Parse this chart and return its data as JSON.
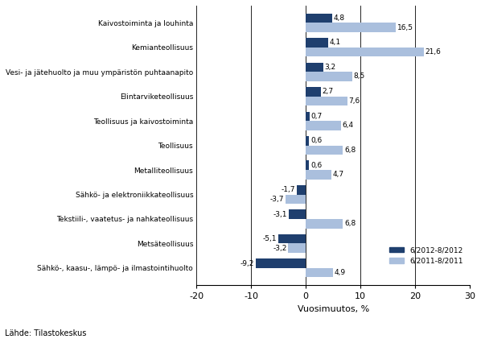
{
  "categories": [
    "Kaivostoiminta ja louhinta",
    "Kemianteollisuus",
    "Vesi- ja jätehuolto ja muu ympäristön puhtaanapito",
    "Elintarviketeollisuus",
    "Teollisuus ja kaivostoiminta",
    "Teollisuus",
    "Metalliteollisuus",
    "Sähkö- ja elektroniikkateollisuus",
    "Tekstiili-, vaatetus- ja nahkateollisuus",
    "Metsäteollisuus",
    "Sähkö-, kaasu-, lämpö- ja ilmastointihuolto"
  ],
  "values_2012": [
    4.8,
    4.1,
    3.2,
    2.7,
    0.7,
    0.6,
    0.6,
    -1.7,
    -3.1,
    -5.1,
    -9.2
  ],
  "values_2011": [
    16.5,
    21.6,
    8.5,
    7.6,
    6.4,
    6.8,
    4.7,
    -3.7,
    6.8,
    -3.2,
    4.9
  ],
  "color_2012": "#1F3F6E",
  "color_2011": "#AABFDD",
  "xlabel": "Vuosimuutos, %",
  "legend_2012": "6/2012-8/2012",
  "legend_2011": "6/2011-8/2011",
  "source": "Lähde: Tilastokeskus",
  "xlim": [
    -20,
    30
  ],
  "xticks": [
    -20,
    -10,
    0,
    10,
    20,
    30
  ],
  "bar_height": 0.38
}
